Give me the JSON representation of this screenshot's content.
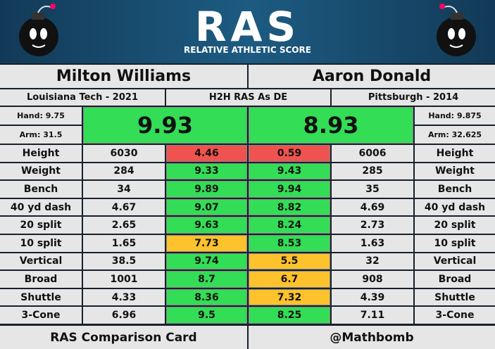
{
  "header": {
    "logo": "RAS",
    "subtitle": "RELATIVE ATHLETIC SCORE"
  },
  "center_label": "H2H RAS As DE",
  "players": [
    {
      "name": "Milton Williams",
      "school": "Louisiana Tech - 2021",
      "hand": "Hand: 9.75",
      "arm": "Arm: 31.5",
      "score": "9.93"
    },
    {
      "name": "Aaron Donald",
      "school": "Pittsburgh - 2014",
      "hand": "Hand: 9.875",
      "arm": "Arm: 32.625",
      "score": "8.93"
    }
  ],
  "table": {
    "rows": [
      [
        "Height",
        "6030",
        "4.46",
        "0.59",
        "6006",
        "Height"
      ],
      [
        "Weight",
        "284",
        "9.33",
        "9.43",
        "285",
        "Weight"
      ],
      [
        "Bench",
        "34",
        "9.89",
        "9.94",
        "35",
        "Bench"
      ],
      [
        "40 yd dash",
        "4.67",
        "9.07",
        "8.82",
        "4.69",
        "40 yd dash"
      ],
      [
        "20 split",
        "2.65",
        "9.63",
        "8.24",
        "2.73",
        "20 split"
      ],
      [
        "10 split",
        "1.65",
        "7.73",
        "8.53",
        "1.63",
        "10 split"
      ],
      [
        "Vertical",
        "38.5",
        "9.74",
        "5.5",
        "32",
        "Vertical"
      ],
      [
        "Broad",
        "1001",
        "8.7",
        "6.7",
        "908",
        "Broad"
      ],
      [
        "Shuttle",
        "4.33",
        "8.36",
        "7.32",
        "4.39",
        "Shuttle"
      ],
      [
        "3-Cone",
        "6.96",
        "9.5",
        "8.25",
        "7.11",
        "3-Cone"
      ]
    ]
  },
  "footer": {
    "left": "RAS Comparison Card",
    "right": "@Mathbomb"
  }
}
